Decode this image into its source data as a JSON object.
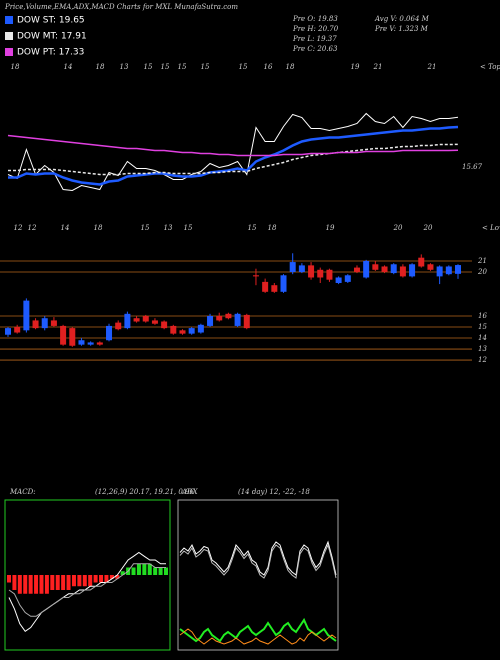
{
  "chart_data": [
    {
      "type": "line",
      "title": "Price,Volume,EMA,ADX,MACD Charts for MXL MunafaSutra.com",
      "ylim": [
        11.35,
        25.35
      ],
      "yticks": [
        15.67
      ],
      "price_color": "#ffffff",
      "top_labels": [
        "18",
        "14",
        "18",
        "13",
        "15",
        "15",
        "15",
        "15",
        "15",
        "16",
        "18",
        "19",
        "21",
        "21"
      ],
      "tops_label": "< Tops",
      "series": [
        {
          "name": "DOW ST: 19.65",
          "color": "#1e5bff",
          "values": [
            14.6,
            14.6,
            15.0,
            14.9,
            15.0,
            15.0,
            14.6,
            14.3,
            14.1,
            14.0,
            13.9,
            14.2,
            14.3,
            14.7,
            14.8,
            14.9,
            15.0,
            15.0,
            14.8,
            14.7,
            14.7,
            14.8,
            15.1,
            15.2,
            15.3,
            15.5,
            15.3,
            16.2,
            16.6,
            16.9,
            17.3,
            17.8,
            18.2,
            18.4,
            18.5,
            18.6,
            18.6,
            18.7,
            18.8,
            18.9,
            19.0,
            19.1,
            19.2,
            19.3,
            19.3,
            19.4,
            19.5,
            19.5,
            19.6,
            19.65
          ]
        },
        {
          "name": "DOW MT: 17.91",
          "color": "#e8e8e8",
          "values": [
            15.3,
            15.3,
            15.4,
            15.4,
            15.4,
            15.4,
            15.3,
            15.2,
            15.1,
            15.0,
            14.9,
            14.9,
            14.9,
            15.0,
            15.0,
            15.0,
            15.1,
            15.1,
            15.0,
            15.0,
            15.0,
            15.0,
            15.1,
            15.1,
            15.2,
            15.2,
            15.2,
            15.5,
            15.7,
            15.9,
            16.1,
            16.4,
            16.6,
            16.8,
            16.9,
            17.0,
            17.1,
            17.2,
            17.3,
            17.4,
            17.5,
            17.5,
            17.6,
            17.7,
            17.7,
            17.8,
            17.8,
            17.9,
            17.9,
            17.91
          ]
        },
        {
          "name": "DOW PT: 17.33",
          "color": "#e040e0",
          "values": [
            18.8,
            18.7,
            18.6,
            18.5,
            18.4,
            18.3,
            18.2,
            18.1,
            18.0,
            17.9,
            17.8,
            17.7,
            17.6,
            17.5,
            17.5,
            17.4,
            17.3,
            17.3,
            17.2,
            17.1,
            17.1,
            17.0,
            17.0,
            16.9,
            16.9,
            16.8,
            16.8,
            16.8,
            16.8,
            16.8,
            16.9,
            16.9,
            16.9,
            17.0,
            17.0,
            17.0,
            17.1,
            17.1,
            17.1,
            17.2,
            17.2,
            17.2,
            17.2,
            17.3,
            17.3,
            17.3,
            17.3,
            17.3,
            17.3,
            17.33
          ]
        }
      ]
    },
    {
      "type": "candlestick",
      "info": [
        "Pre O: 19.83",
        "Pre H: 20.70",
        "Pre L: 19.37",
        "Pre C: 20.63"
      ],
      "volume_info": [
        "Avg V: 0.064 M",
        "Pre V: 1.323 M"
      ],
      "low_labels": [
        "12",
        "12",
        "14",
        "18",
        "15",
        "13",
        "15",
        "15",
        "18",
        "19",
        "20",
        "20"
      ],
      "lows_label": "< Lows",
      "up_color": "#1e5bff",
      "down_color": "#e02020",
      "level_color": "#b5651d",
      "ylim": [
        11.55,
        23.36
      ],
      "yticks": [
        12,
        13,
        14,
        15,
        16,
        20,
        21
      ],
      "open": [
        14.3,
        15.0,
        14.7,
        15.6,
        14.9,
        15.6,
        15.1,
        14.9,
        13.4,
        13.4,
        13.6,
        13.8,
        15.4,
        14.9,
        15.8,
        16.0,
        15.6,
        15.5,
        15.1,
        14.7,
        14.4,
        14.5,
        15.1,
        16.0,
        16.2,
        15.1,
        16.1,
        19.7,
        19.1,
        18.8,
        18.2,
        20.0,
        20.0,
        20.6,
        20.2,
        20.2,
        19.0,
        19.1,
        20.4,
        19.5,
        20.7,
        20.5,
        19.9,
        20.5,
        19.6,
        21.3,
        20.7,
        19.6,
        19.8,
        19.83
      ],
      "high": [
        15.0,
        15.2,
        17.6,
        15.8,
        16.0,
        15.9,
        15.2,
        15.0,
        14.0,
        13.7,
        13.7,
        15.3,
        15.6,
        16.4,
        16.0,
        16.1,
        15.8,
        15.6,
        15.2,
        14.8,
        15.0,
        15.3,
        16.2,
        16.3,
        16.3,
        16.3,
        16.2,
        20.3,
        19.4,
        19.0,
        19.8,
        21.7,
        20.8,
        20.9,
        20.4,
        20.3,
        19.6,
        19.8,
        20.6,
        21.1,
        21.0,
        20.6,
        20.8,
        20.7,
        20.8,
        21.6,
        20.8,
        20.6,
        20.6,
        20.7
      ],
      "low": [
        14.1,
        14.4,
        14.5,
        14.8,
        14.7,
        15.0,
        13.3,
        13.2,
        13.3,
        13.3,
        13.3,
        13.7,
        14.7,
        14.8,
        15.4,
        15.4,
        15.2,
        14.8,
        14.3,
        14.3,
        14.3,
        14.4,
        15.0,
        15.5,
        15.7,
        15.0,
        14.8,
        18.8,
        18.1,
        18.1,
        18.1,
        19.8,
        19.9,
        19.3,
        19.0,
        19.1,
        18.9,
        19.0,
        19.9,
        19.4,
        20.1,
        19.9,
        19.8,
        19.5,
        19.5,
        20.4,
        20.1,
        18.9,
        19.7,
        19.37
      ],
      "close": [
        14.9,
        14.5,
        17.4,
        14.9,
        15.8,
        15.1,
        13.4,
        13.3,
        13.8,
        13.6,
        13.4,
        15.1,
        14.8,
        16.2,
        15.5,
        15.5,
        15.3,
        14.9,
        14.4,
        14.4,
        14.9,
        15.2,
        16.0,
        15.6,
        15.8,
        16.2,
        14.9,
        19.6,
        18.2,
        18.2,
        19.7,
        20.9,
        20.6,
        19.5,
        19.5,
        19.3,
        19.5,
        19.7,
        20.0,
        21.0,
        20.2,
        20.0,
        20.7,
        19.6,
        20.7,
        20.5,
        20.2,
        20.5,
        20.5,
        20.63
      ]
    },
    {
      "type": "macd",
      "title": "MACD:",
      "subtitle": "(12,26,9) 20.17, 19.21, 0.96",
      "ylim": [
        -2,
        2
      ],
      "frame_color": "#22cc22",
      "up_color": "#22dd22",
      "down_color": "#ff2020",
      "histogram": [
        -0.2,
        -0.4,
        -0.5,
        -0.5,
        -0.5,
        -0.5,
        -0.5,
        -0.5,
        -0.4,
        -0.4,
        -0.4,
        -0.4,
        -0.3,
        -0.3,
        -0.3,
        -0.3,
        -0.2,
        -0.2,
        -0.2,
        -0.1,
        -0.1,
        0.1,
        0.2,
        0.2,
        0.3,
        0.3,
        0.3,
        0.2,
        0.2,
        0.2
      ],
      "series": [
        {
          "color": "#ffffff",
          "values": [
            -0.6,
            -0.9,
            -1.3,
            -1.5,
            -1.4,
            -1.2,
            -1.0,
            -0.9,
            -0.8,
            -0.7,
            -0.6,
            -0.5,
            -0.5,
            -0.4,
            -0.4,
            -0.3,
            -0.3,
            -0.2,
            -0.2,
            -0.1,
            0.0,
            0.2,
            0.4,
            0.5,
            0.6,
            0.5,
            0.4,
            0.4,
            0.3,
            0.3
          ]
        },
        {
          "color": "#aaaaaa",
          "values": [
            -0.4,
            -0.5,
            -0.8,
            -1.0,
            -1.1,
            -1.1,
            -1.0,
            -0.9,
            -0.8,
            -0.7,
            -0.6,
            -0.6,
            -0.5,
            -0.5,
            -0.4,
            -0.4,
            -0.3,
            -0.3,
            -0.2,
            -0.2,
            -0.1,
            0.0,
            0.1,
            0.3,
            0.3,
            0.3,
            0.3,
            0.2,
            0.2,
            0.2
          ]
        }
      ]
    },
    {
      "type": "adx",
      "title": "ADX",
      "subtitle": "(14 day) 12, -22, -18",
      "ylim": [
        0,
        100
      ],
      "frame_color": "#cccccc",
      "series": [
        {
          "color": "#ffffff",
          "values": [
            65,
            68,
            66,
            70,
            64,
            66,
            69,
            68,
            60,
            58,
            55,
            52,
            55,
            62,
            70,
            67,
            63,
            66,
            60,
            58,
            52,
            50,
            55,
            68,
            72,
            70,
            62,
            55,
            52,
            50,
            66,
            70,
            68,
            60,
            55,
            58,
            66,
            72,
            62,
            50
          ]
        },
        {
          "color": "#bbbbbb",
          "values": [
            63,
            66,
            64,
            68,
            62,
            64,
            67,
            66,
            58,
            56,
            53,
            50,
            53,
            60,
            68,
            65,
            61,
            64,
            58,
            56,
            50,
            48,
            53,
            66,
            70,
            68,
            60,
            53,
            50,
            48,
            64,
            68,
            66,
            58,
            53,
            56,
            64,
            70,
            60,
            48
          ]
        },
        {
          "color": "#22ee22",
          "values": [
            14,
            12,
            10,
            8,
            6,
            8,
            12,
            14,
            10,
            8,
            6,
            10,
            12,
            10,
            8,
            12,
            14,
            16,
            12,
            10,
            12,
            14,
            18,
            14,
            10,
            12,
            16,
            18,
            14,
            12,
            16,
            20,
            14,
            12,
            10,
            12,
            14,
            10,
            8,
            6
          ]
        },
        {
          "color": "#ff8c1a",
          "values": [
            10,
            12,
            14,
            12,
            8,
            6,
            4,
            6,
            8,
            6,
            5,
            4,
            5,
            6,
            8,
            6,
            4,
            5,
            6,
            8,
            6,
            5,
            4,
            6,
            8,
            10,
            8,
            6,
            4,
            5,
            8,
            6,
            10,
            12,
            10,
            8,
            6,
            8,
            10,
            8
          ]
        }
      ]
    }
  ]
}
